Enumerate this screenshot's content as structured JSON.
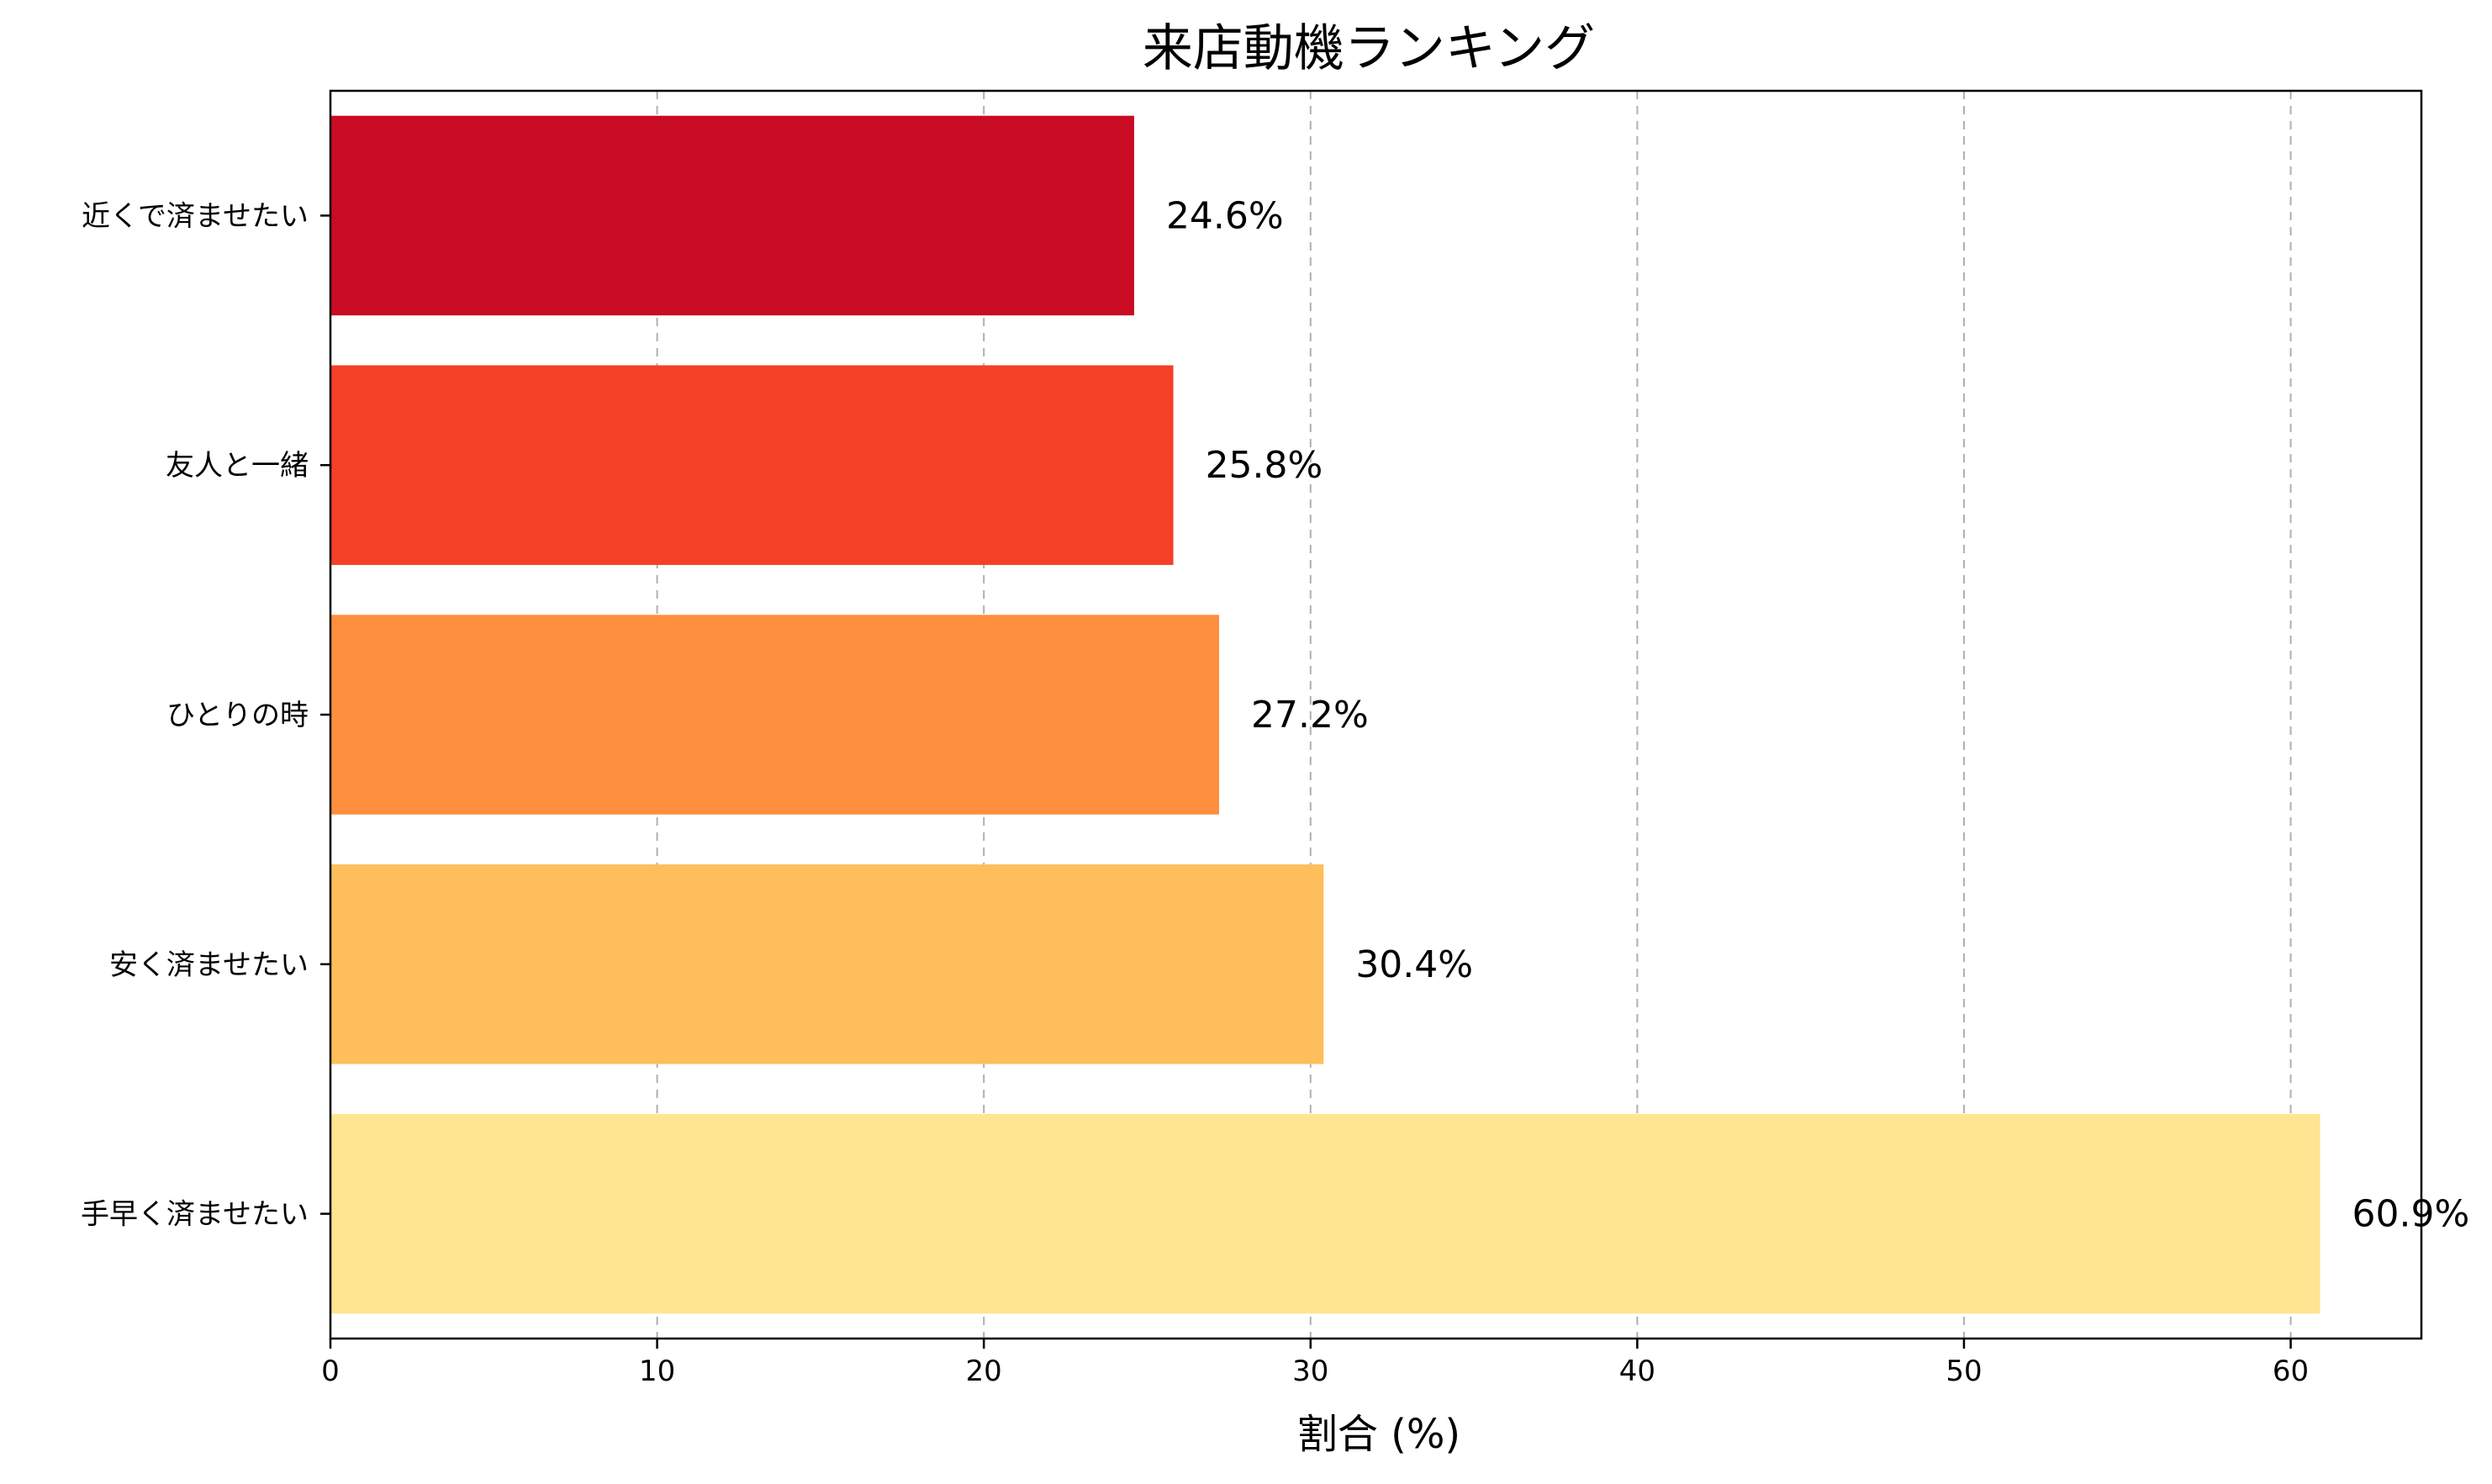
{
  "chart_data": {
    "type": "bar",
    "orientation": "horizontal",
    "title": "来店動機ランキング",
    "xlabel": "割合 (%)",
    "ylabel": "",
    "xlim": [
      0,
      64
    ],
    "xticks": [
      0,
      10,
      20,
      30,
      40,
      50,
      60
    ],
    "grid": "x-dashed",
    "categories": [
      "近くで済ませたい",
      "友人と一緒",
      "ひとりの時",
      "安く済ませたい",
      "手早く済ませたい"
    ],
    "values": [
      24.6,
      25.8,
      27.2,
      30.4,
      60.9
    ],
    "value_labels": [
      "24.6%",
      "25.8%",
      "27.2%",
      "30.4%",
      "60.9%"
    ],
    "colors": [
      "#c90b24",
      "#f34027",
      "#fd8f3e",
      "#febe5b",
      "#fee591"
    ]
  }
}
